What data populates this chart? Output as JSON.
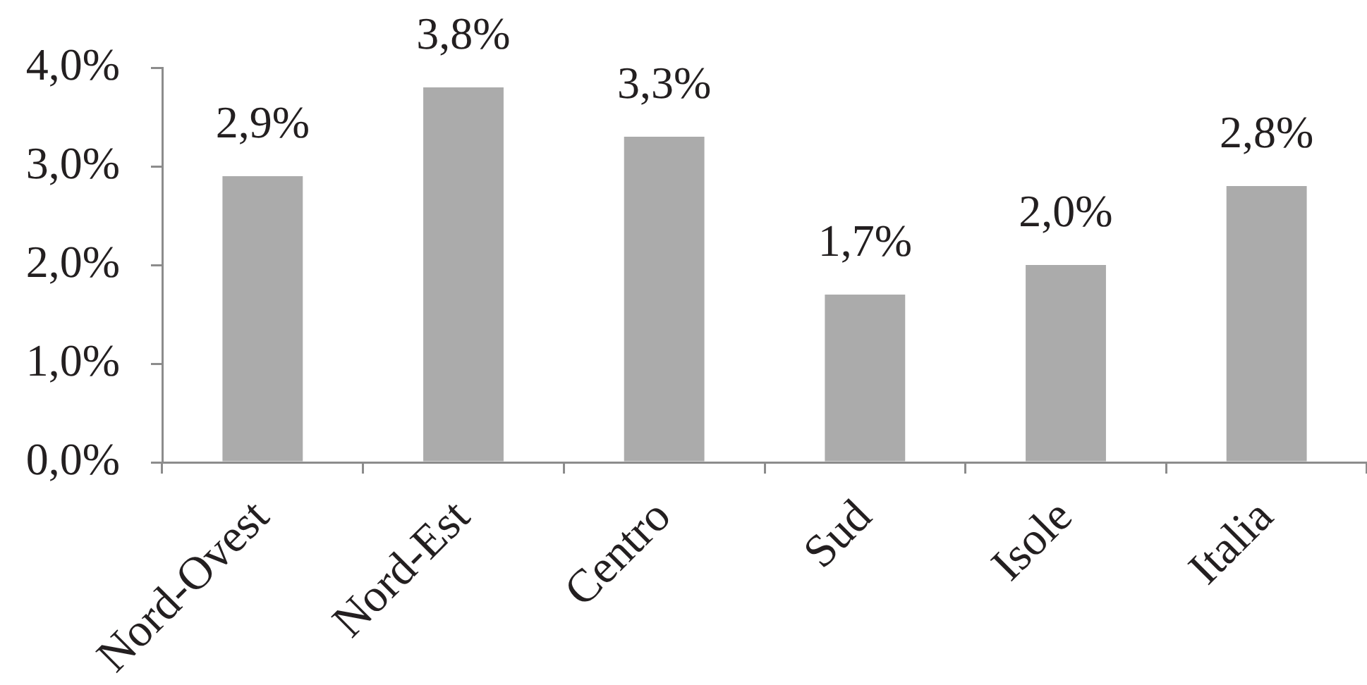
{
  "chart_data": {
    "type": "bar",
    "categories": [
      "Nord-Ovest",
      "Nord-Est",
      "Centro",
      "Sud",
      "Isole",
      "Italia"
    ],
    "values": [
      2.9,
      3.8,
      3.3,
      1.7,
      2.0,
      2.8
    ],
    "color": "#ababab",
    "value_labels": [
      "2,9%",
      "3,8%",
      "3,3%",
      "1,7%",
      "2,0%",
      "2,8%"
    ],
    "ylim": [
      0,
      4
    ],
    "yticks": [
      {
        "value": 0,
        "label": "0,0%"
      },
      {
        "value": 1,
        "label": "1,0%"
      },
      {
        "value": 2,
        "label": "2,0%"
      },
      {
        "value": 3,
        "label": "3,0%"
      },
      {
        "value": 4,
        "label": "4,0%"
      }
    ]
  }
}
